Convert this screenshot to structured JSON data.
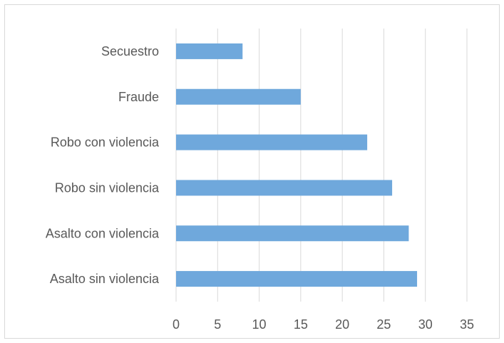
{
  "chart_data": {
    "type": "bar",
    "orientation": "horizontal",
    "title": "",
    "xlabel": "",
    "ylabel": "",
    "categories": [
      "Secuestro",
      "Fraude",
      "Robo con violencia",
      "Robo sin violencia",
      "Asalto con violencia",
      "Asalto sin violencia"
    ],
    "values": [
      8,
      15,
      23,
      26,
      28,
      29
    ],
    "xlim": [
      0,
      35
    ],
    "xticks": [
      0,
      5,
      10,
      15,
      20,
      25,
      30,
      35
    ],
    "grid": true,
    "legend": "none",
    "bar_color": "#6FA8DC",
    "grid_color": "#d9d9d9",
    "text_color": "#595959"
  }
}
